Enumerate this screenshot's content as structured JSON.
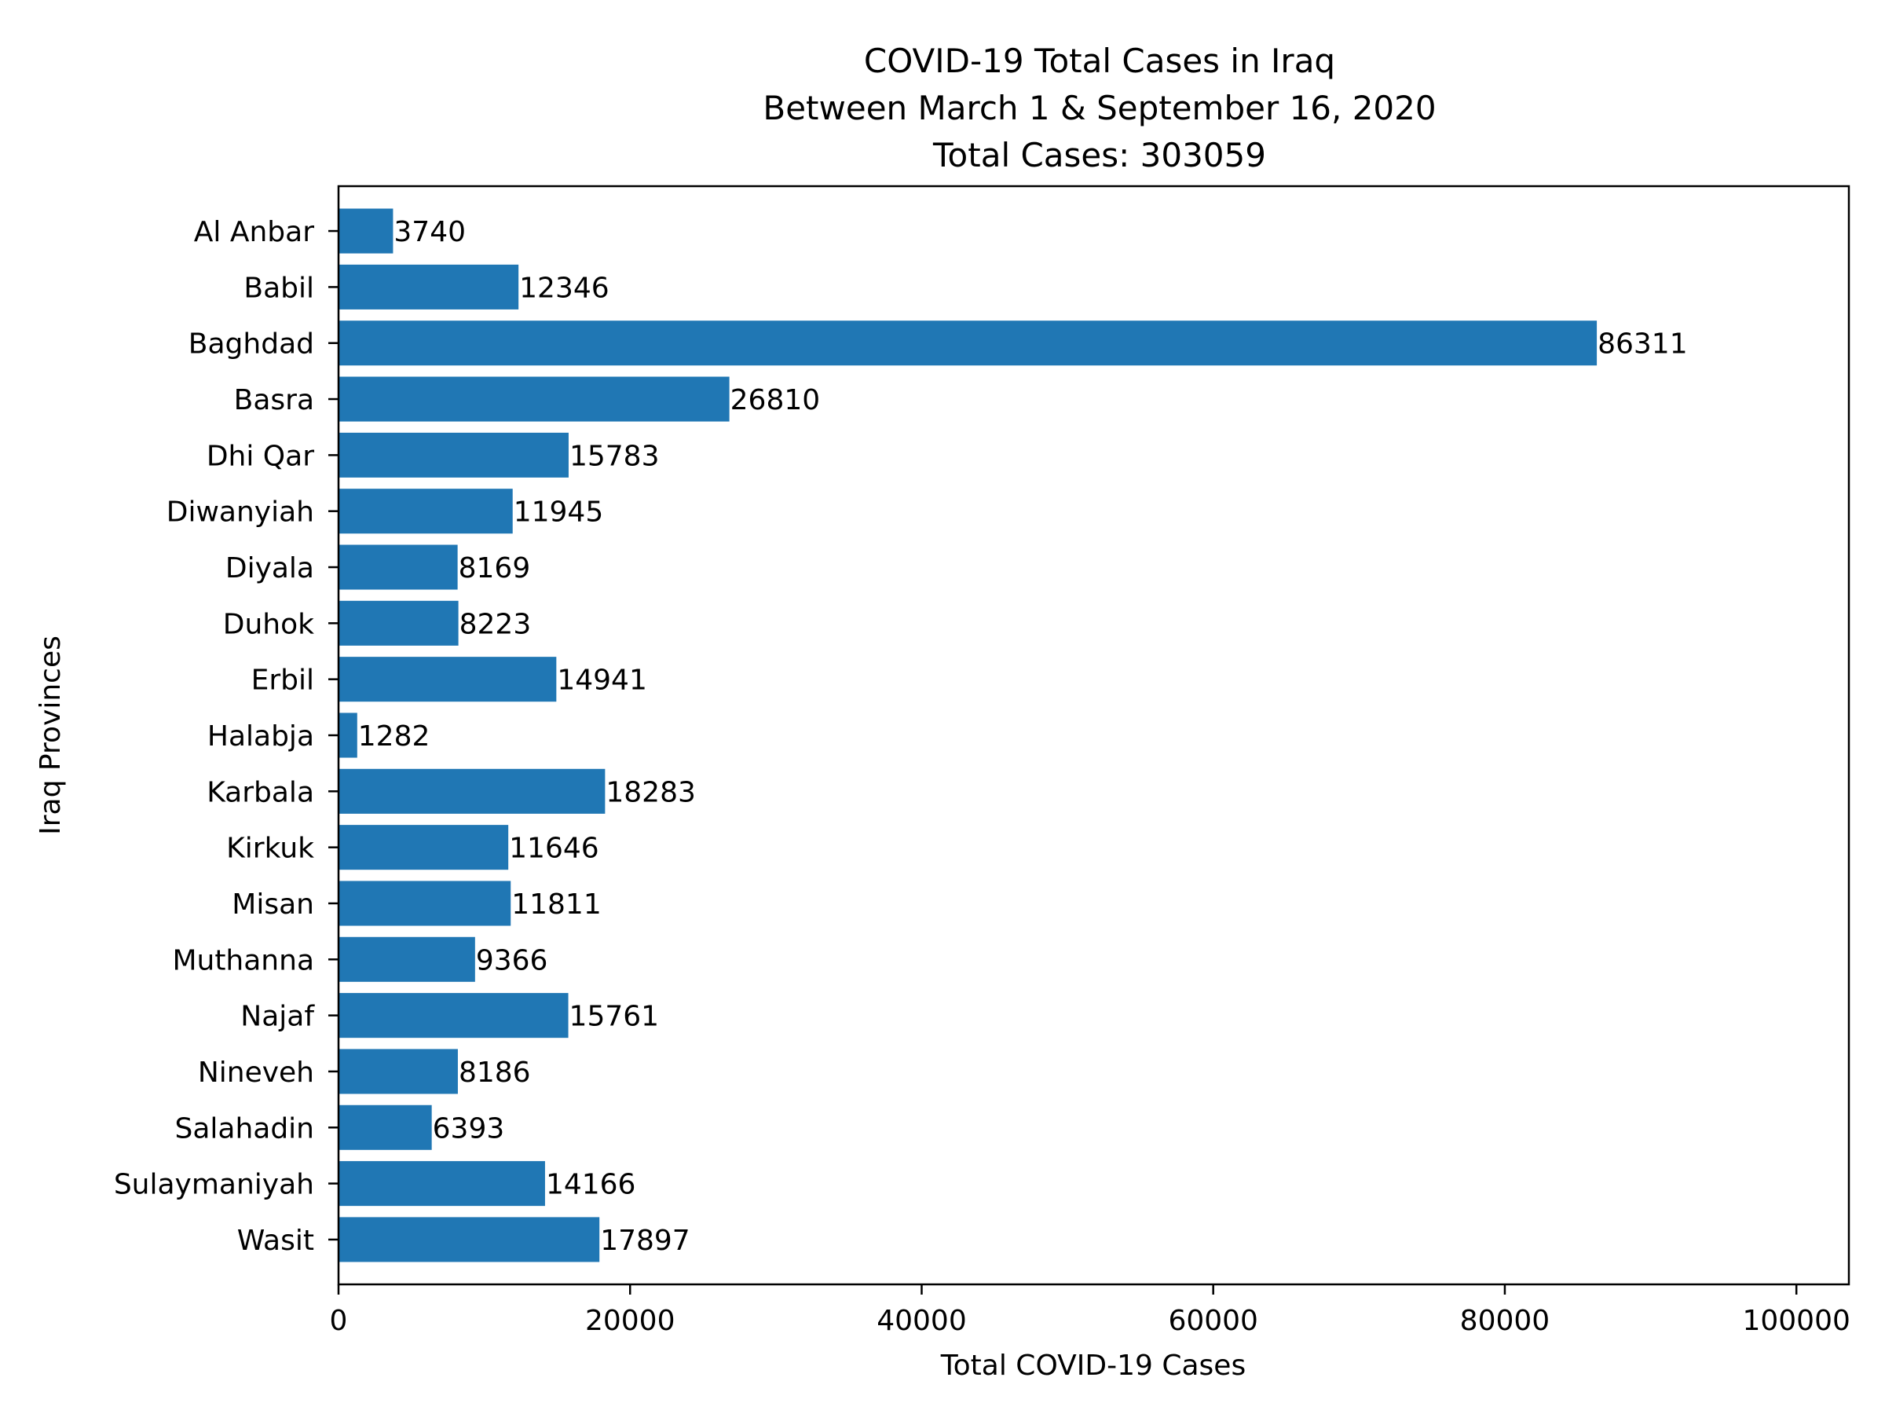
{
  "chart_data": {
    "type": "bar",
    "orientation": "horizontal",
    "title": [
      "COVID-19 Total Cases in Iraq",
      "Between March 1 & September 16, 2020",
      "Total Cases: 303059"
    ],
    "xlabel": "Total COVID-19 Cases",
    "ylabel": "Iraq Provinces",
    "xlim": [
      0,
      103600
    ],
    "xticks": [
      0,
      20000,
      40000,
      60000,
      80000,
      100000
    ],
    "grid": false,
    "legend": "none",
    "bar_color": "#2077b4",
    "categories": [
      "Al Anbar",
      "Babil",
      "Baghdad",
      "Basra",
      "Dhi Qar",
      "Diwanyiah",
      "Diyala",
      "Duhok",
      "Erbil",
      "Halabja",
      "Karbala",
      "Kirkuk",
      "Misan",
      "Muthanna",
      "Najaf",
      "Nineveh",
      "Salahadin",
      "Sulaymaniyah",
      "Wasit"
    ],
    "values": [
      3740,
      12346,
      86311,
      26810,
      15783,
      11945,
      8169,
      8223,
      14941,
      1282,
      18283,
      11646,
      11811,
      9366,
      15761,
      8186,
      6393,
      14166,
      17897
    ]
  }
}
